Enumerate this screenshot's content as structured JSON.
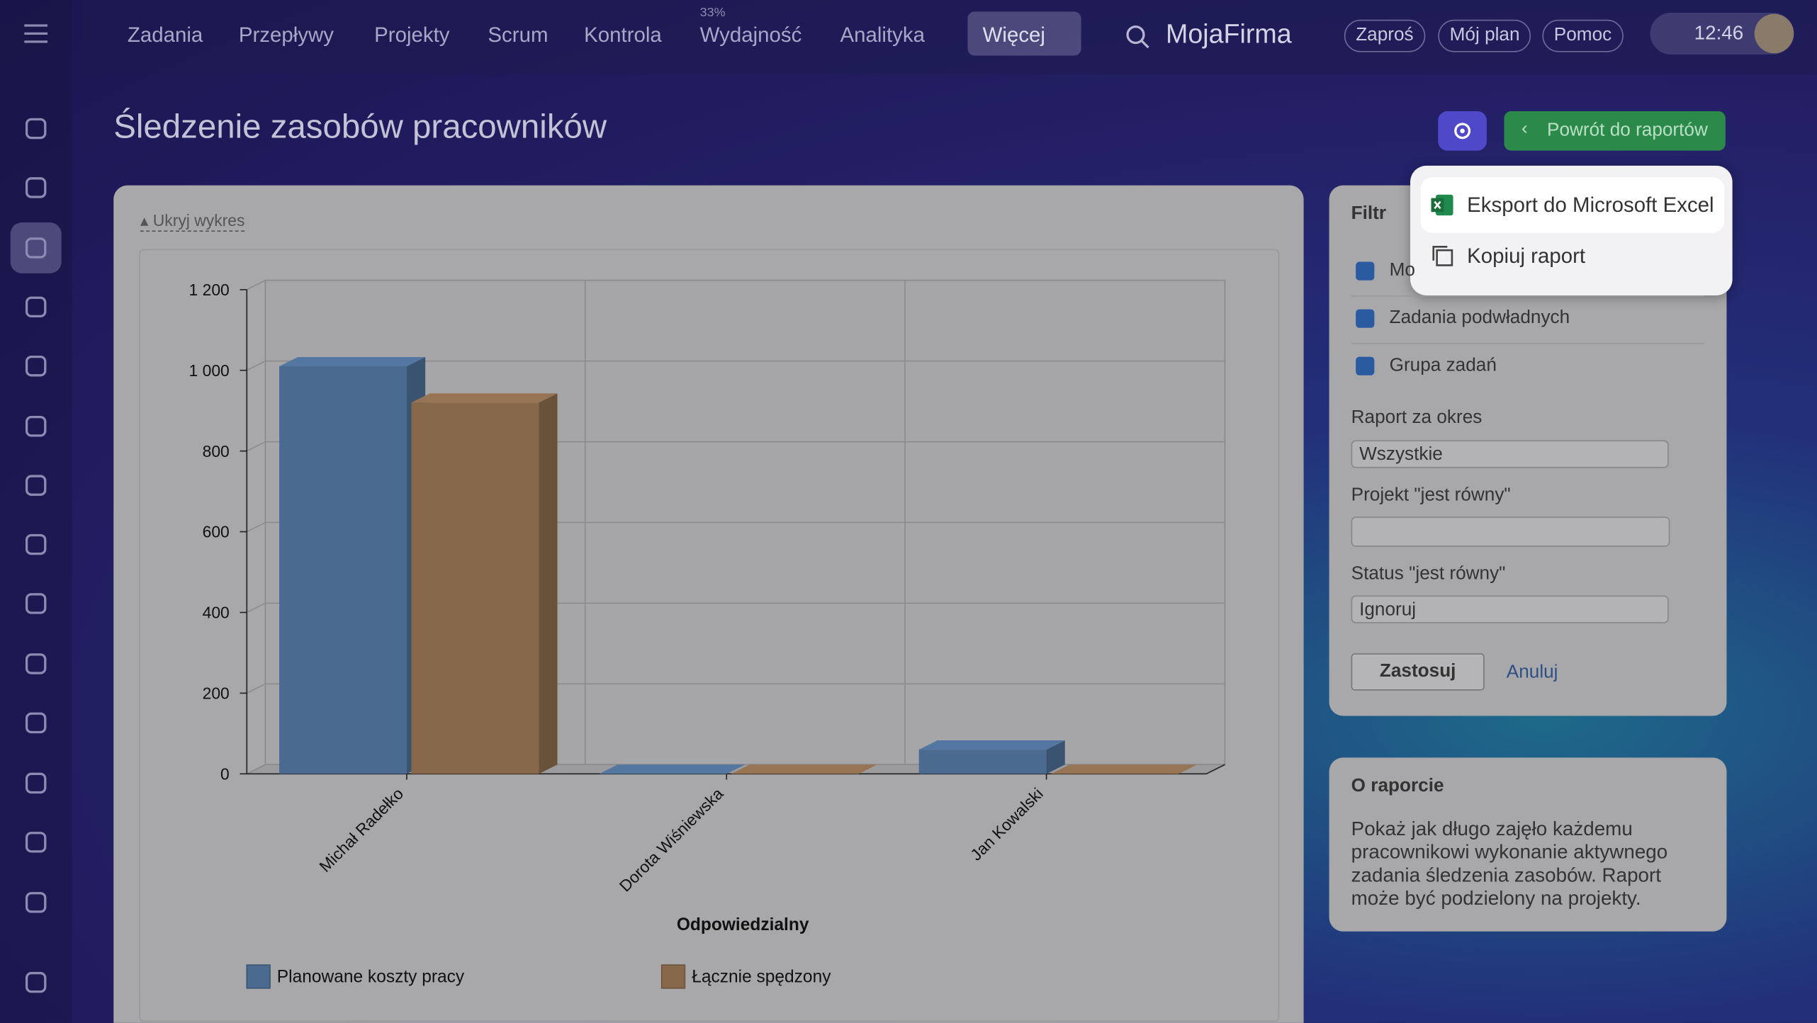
{
  "nav": {
    "items": [
      "Zadania",
      "Przepływy",
      "Projekty",
      "Scrum",
      "Kontrola",
      "Wydajność",
      "Analityka",
      "Więcej"
    ],
    "badge": "33%",
    "brand": "MojaFirma",
    "buttons": [
      "Zaproś",
      "Mój plan",
      "Pomoc"
    ],
    "time": "12:46"
  },
  "header": {
    "title": "Śledzenie zasobów pracowników",
    "back_button": "Powrót do raportów",
    "toggle": "Ukryj wykres"
  },
  "menu": {
    "items": [
      "Eksport do Microsoft Excel",
      "Kopiuj raport"
    ]
  },
  "filter": {
    "title": "Filtr",
    "checkboxes": [
      "Mo",
      "Zadania podwładnych",
      "Grupa zadań"
    ],
    "period_label": "Raport za okres",
    "period_value": "Wszystkie",
    "project_label": "Projekt \"jest równy\"",
    "status_label": "Status \"jest równy\"",
    "status_value": "Ignoruj",
    "apply": "Zastosuj",
    "cancel": "Anuluj"
  },
  "about": {
    "title": "O raporcie",
    "text": "Pokaż jak długo zajęło każdemu pracownikowi wykonanie aktywnego zadania śledzenia zasobów. Raport może być podzielony na projekty."
  },
  "chart_data": {
    "type": "bar3d",
    "xlabel": "Odpowiedzialny",
    "categories": [
      "Michał Radełko",
      "Dorota Wiśniewska",
      "Jan Kowalski"
    ],
    "series": [
      {
        "name": "Planowane koszty pracy",
        "color": "#4a6a90",
        "values": [
          1010,
          0,
          60
        ]
      },
      {
        "name": "Łącznie spędzony",
        "color": "#87684a",
        "values": [
          920,
          0,
          0
        ]
      }
    ],
    "ylim": [
      0,
      1200
    ],
    "yticks": [
      0,
      200,
      400,
      600,
      800,
      {
        "value": 1000,
        "label": "1 000"
      },
      {
        "value": 1200,
        "label": "1 200"
      }
    ],
    "grid": true
  }
}
